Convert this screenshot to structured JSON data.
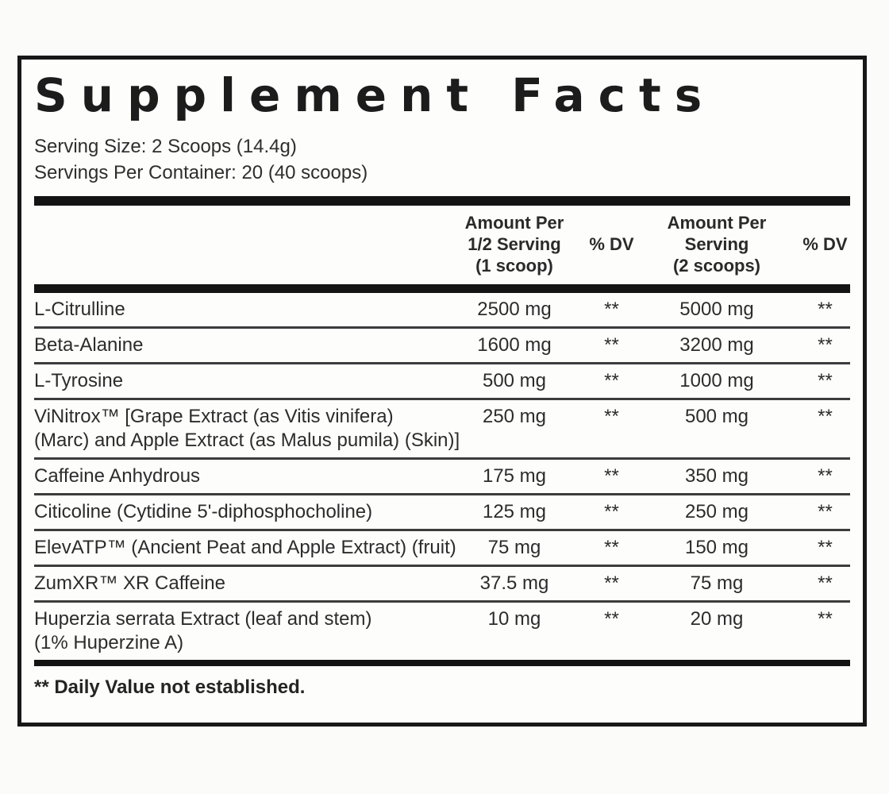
{
  "title": "Supplement Facts",
  "serving": {
    "size": "Serving Size: 2 Scoops (14.4g)",
    "per_container": "Servings Per Container: 20 (40 scoops)"
  },
  "columns": {
    "amount_half_line1": "Amount Per",
    "amount_half_line2": "1/2 Serving",
    "amount_half_line3": "(1 scoop)",
    "dv_half": "% DV",
    "amount_full_line1": "Amount Per",
    "amount_full_line2": "Serving",
    "amount_full_line3": "(2 scoops)",
    "dv_full": "% DV"
  },
  "rows": [
    {
      "name": "L-Citrulline",
      "half": "2500 mg",
      "dv_half": "**",
      "full": "5000 mg",
      "dv_full": "**"
    },
    {
      "name": "Beta-Alanine",
      "half": "1600 mg",
      "dv_half": "**",
      "full": "3200 mg",
      "dv_full": "**"
    },
    {
      "name": "L-Tyrosine",
      "half": "500 mg",
      "dv_half": "**",
      "full": "1000 mg",
      "dv_full": "**"
    },
    {
      "name": "ViNitrox™ [Grape Extract (as Vitis vinifera)",
      "name2": "(Marc) and Apple Extract (as Malus pumila) (Skin)]",
      "half": "250 mg",
      "dv_half": "**",
      "full": "500 mg",
      "dv_full": "**"
    },
    {
      "name": "Caffeine Anhydrous",
      "half": "175 mg",
      "dv_half": "**",
      "full": "350 mg",
      "dv_full": "**"
    },
    {
      "name": "Citicoline (Cytidine 5'-diphosphocholine)",
      "half": "125 mg",
      "dv_half": "**",
      "full": "250 mg",
      "dv_full": "**"
    },
    {
      "name": "ElevATP™ (Ancient Peat and Apple Extract) (fruit)",
      "half": "75 mg",
      "dv_half": "**",
      "full": "150 mg",
      "dv_full": "**"
    },
    {
      "name": "ZumXR™ XR Caffeine",
      "half": "37.5 mg",
      "dv_half": "**",
      "full": "75 mg",
      "dv_full": "**"
    },
    {
      "name": "Huperzia serrata Extract (leaf and stem)",
      "name2": "(1% Huperzine A)",
      "half": "10 mg",
      "dv_half": "**",
      "full": "20 mg",
      "dv_full": "**"
    }
  ],
  "footnote": "** Daily Value not established.",
  "colors": {
    "text": "#262626",
    "rule": "#3c3c3c",
    "bar": "#141414",
    "border": "#171717",
    "background": "#fbfbfa",
    "label_background": "#fdfdfc"
  }
}
